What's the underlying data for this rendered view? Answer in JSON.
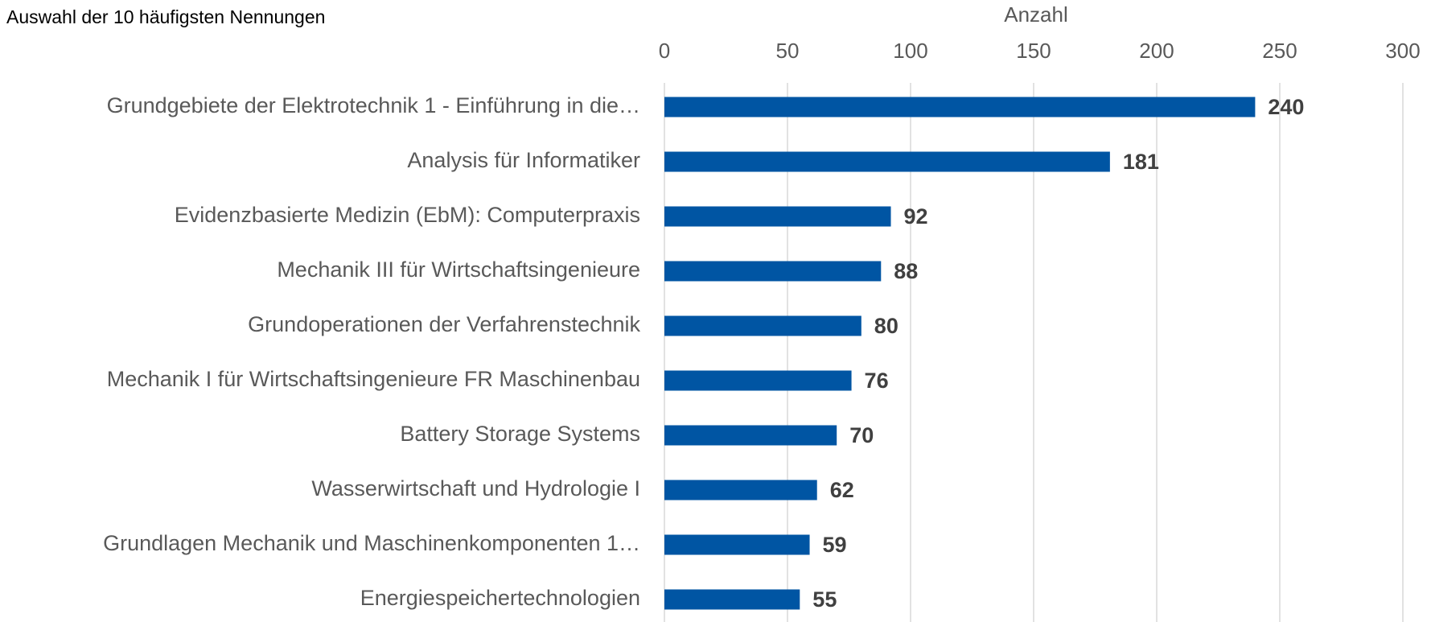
{
  "chart_data": {
    "type": "bar",
    "orientation": "horizontal",
    "title": "Auswahl der 10 häufigsten Nennungen",
    "x_axis_label": "Anzahl",
    "categories": [
      "Grundgebiete der Elektrotechnik 1 - Einführung in die…",
      "Analysis für Informatiker",
      "Evidenzbasierte Medizin (EbM): Computerpraxis",
      "Mechanik III für Wirtschaftsingenieure",
      "Grundoperationen der Verfahrenstechnik",
      "Mechanik I für Wirtschaftsingenieure FR Maschinenbau",
      "Battery Storage Systems",
      "Wasserwirtschaft und Hydrologie I",
      "Grundlagen Mechanik und Maschinenkomponenten 1…",
      "Energiespeichertechnologien"
    ],
    "values": [
      240,
      181,
      92,
      88,
      80,
      76,
      70,
      62,
      59,
      55
    ],
    "color": "#0055a3",
    "xlim": [
      0,
      300
    ],
    "xticks": [
      0,
      50,
      100,
      150,
      200,
      250,
      300
    ],
    "grid": true
  }
}
